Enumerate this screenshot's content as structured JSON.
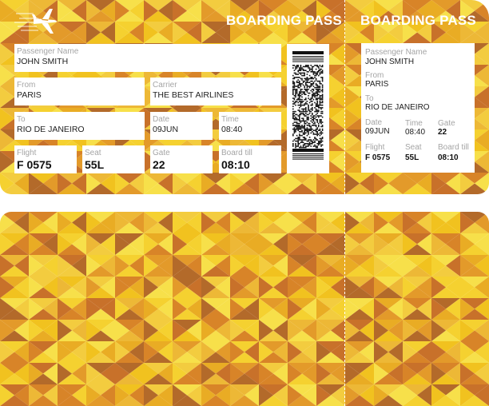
{
  "colors": {
    "palette": [
      "#f5d130",
      "#f1c21f",
      "#e9ac24",
      "#e39a2a",
      "#d88428",
      "#c8712a",
      "#f7e04a",
      "#edb836",
      "#b36a2a",
      "#f3cc3f"
    ]
  },
  "main_ticket": {
    "title": "BOARDING PASS",
    "icon": "airplane-icon",
    "fields": {
      "passenger": {
        "label": "Passenger Name",
        "value": "JOHN SMITH"
      },
      "from": {
        "label": "From",
        "value": "PARIS"
      },
      "carrier": {
        "label": "Carrier",
        "value": "THE BEST AIRLINES"
      },
      "to": {
        "label": "To",
        "value": "RIO DE JANEIRO"
      },
      "date": {
        "label": "Date",
        "value": "09JUN"
      },
      "time": {
        "label": "Time",
        "value": "08:40"
      },
      "flight": {
        "label": "Flight",
        "value": "F 0575"
      },
      "seat": {
        "label": "Seat",
        "value": "55L"
      },
      "gate": {
        "label": "Gate",
        "value": "22"
      },
      "board_till": {
        "label": "Board till",
        "value": "08:10"
      }
    }
  },
  "stub": {
    "title": "BOARDING PASS",
    "fields": {
      "passenger": {
        "label": "Passenger Name",
        "value": "JOHN SMITH"
      },
      "from": {
        "label": "From",
        "value": "PARIS"
      },
      "to": {
        "label": "To",
        "value": "RIO DE JANEIRO"
      },
      "date": {
        "label": "Date",
        "value": "09JUN"
      },
      "time": {
        "label": "Time",
        "value": "08:40"
      },
      "gate": {
        "label": "Gate",
        "value": "22"
      },
      "flight": {
        "label": "Flight",
        "value": "F 0575"
      },
      "seat": {
        "label": "Seat",
        "value": "55L"
      },
      "board_till": {
        "label": "Board till",
        "value": "08:10"
      }
    }
  }
}
